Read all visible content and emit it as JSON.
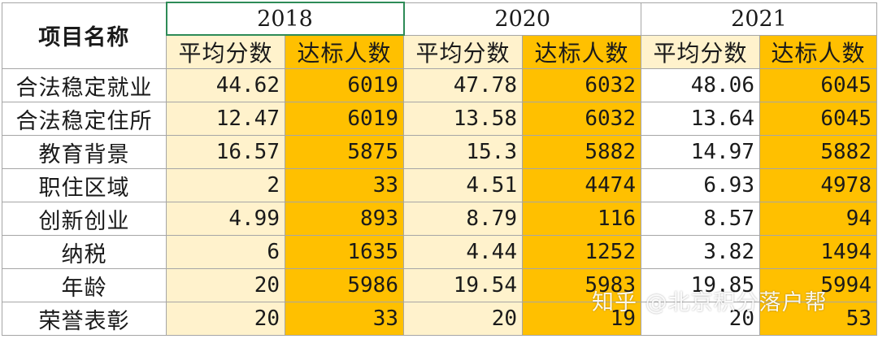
{
  "table": {
    "corner_label": "项目名称",
    "years": [
      "2018",
      "2020",
      "2021"
    ],
    "sub_headers": {
      "avg": "平均分数",
      "count": "达标人数"
    },
    "rows": [
      {
        "label": "合法稳定就业",
        "values": [
          "44.62",
          "6019",
          "47.78",
          "6032",
          "48.06",
          "6045"
        ]
      },
      {
        "label": "合法稳定住所",
        "values": [
          "12.47",
          "6019",
          "13.58",
          "6032",
          "13.64",
          "6045"
        ]
      },
      {
        "label": "教育背景",
        "values": [
          "16.57",
          "5875",
          "15.3",
          "5882",
          "14.97",
          "5882"
        ]
      },
      {
        "label": "职住区域",
        "values": [
          "2",
          "33",
          "4.51",
          "4474",
          "6.93",
          "4978"
        ]
      },
      {
        "label": "创新创业",
        "values": [
          "4.99",
          "893",
          "8.79",
          "116",
          "8.57",
          "94"
        ]
      },
      {
        "label": "纳税",
        "values": [
          "6",
          "1635",
          "4.44",
          "1252",
          "3.82",
          "1494"
        ]
      },
      {
        "label": "年龄",
        "values": [
          "20",
          "5986",
          "19.54",
          "5983",
          "19.85",
          "5994"
        ]
      },
      {
        "label": "荣誉表彰",
        "values": [
          "20",
          "33",
          "20",
          "19",
          "20",
          "53"
        ]
      }
    ]
  },
  "watermark": "知乎 @北京积分落户帮",
  "colors": {
    "avg_fill": "#fff2cc",
    "count_fill": "#ffc000",
    "selected_border": "#2e8b57"
  }
}
